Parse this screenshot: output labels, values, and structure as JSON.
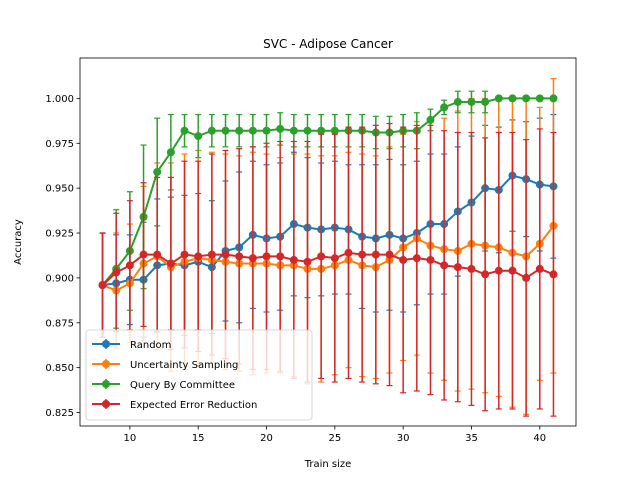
{
  "chart_data": {
    "type": "line",
    "title": "SVC - Adipose Cancer",
    "xlabel": "Train size",
    "ylabel": "Accuracy",
    "xlim": [
      6.35,
      42.65
    ],
    "ylim": [
      0.8175,
      1.0225
    ],
    "xticks": [
      10,
      15,
      20,
      25,
      30,
      35,
      40
    ],
    "yticks": [
      0.825,
      0.85,
      0.875,
      0.9,
      0.925,
      0.95,
      0.975,
      1.0
    ],
    "ytick_labels": [
      "0.825",
      "0.850",
      "0.875",
      "0.900",
      "0.925",
      "0.950",
      "0.975",
      "1.000"
    ],
    "grid": false,
    "legend_position": "lower-left",
    "x": [
      8,
      9,
      10,
      11,
      12,
      13,
      14,
      15,
      16,
      17,
      18,
      19,
      20,
      21,
      22,
      23,
      24,
      25,
      26,
      27,
      28,
      29,
      30,
      31,
      32,
      33,
      34,
      35,
      36,
      37,
      38,
      39,
      40,
      41
    ],
    "series": [
      {
        "name": "Random",
        "color": "#1f77b4",
        "values": [
          0.896,
          0.897,
          0.899,
          0.899,
          0.907,
          0.908,
          0.907,
          0.909,
          0.906,
          0.915,
          0.917,
          0.924,
          0.922,
          0.923,
          0.93,
          0.928,
          0.927,
          0.928,
          0.927,
          0.923,
          0.922,
          0.924,
          0.922,
          0.925,
          0.93,
          0.93,
          0.937,
          0.942,
          0.95,
          0.949,
          0.957,
          0.955,
          0.952,
          0.951
        ],
        "errors": [
          0.029,
          0.027,
          0.025,
          0.032,
          0.037,
          0.037,
          0.039,
          0.038,
          0.037,
          0.039,
          0.042,
          0.041,
          0.041,
          0.041,
          0.04,
          0.039,
          0.037,
          0.037,
          0.036,
          0.04,
          0.041,
          0.042,
          0.041,
          0.04,
          0.039,
          0.039,
          0.036,
          0.037,
          0.035,
          0.035,
          0.031,
          0.032,
          0.037,
          0.04
        ]
      },
      {
        "name": "Uncertainty Sampling",
        "color": "#ff7f0e",
        "values": [
          0.896,
          0.893,
          0.897,
          0.908,
          0.912,
          0.906,
          0.909,
          0.911,
          0.91,
          0.909,
          0.908,
          0.908,
          0.908,
          0.907,
          0.907,
          0.905,
          0.905,
          0.907,
          0.91,
          0.907,
          0.906,
          0.91,
          0.917,
          0.922,
          0.918,
          0.916,
          0.915,
          0.919,
          0.918,
          0.917,
          0.914,
          0.912,
          0.919,
          0.929
        ],
        "errors": [
          0.029,
          0.032,
          0.033,
          0.043,
          0.052,
          0.058,
          0.06,
          0.06,
          0.06,
          0.06,
          0.06,
          0.062,
          0.061,
          0.06,
          0.062,
          0.064,
          0.063,
          0.061,
          0.06,
          0.062,
          0.062,
          0.063,
          0.063,
          0.065,
          0.071,
          0.073,
          0.078,
          0.081,
          0.082,
          0.083,
          0.086,
          0.088,
          0.076,
          0.082
        ]
      },
      {
        "name": "Query By Committee",
        "color": "#2ca02c",
        "values": [
          0.896,
          0.905,
          0.915,
          0.934,
          0.959,
          0.97,
          0.982,
          0.979,
          0.982,
          0.982,
          0.982,
          0.982,
          0.982,
          0.983,
          0.982,
          0.982,
          0.982,
          0.982,
          0.982,
          0.982,
          0.981,
          0.981,
          0.982,
          0.982,
          0.988,
          0.995,
          0.998,
          0.998,
          0.998,
          1.0,
          1.0,
          1.0,
          1.0,
          1.0
        ],
        "errors": [
          0.029,
          0.033,
          0.033,
          0.04,
          0.03,
          0.021,
          0.009,
          0.012,
          0.009,
          0.009,
          0.009,
          0.009,
          0.009,
          0.009,
          0.009,
          0.009,
          0.009,
          0.009,
          0.009,
          0.009,
          0.009,
          0.009,
          0.009,
          0.01,
          0.006,
          0.004,
          0.006,
          0.006,
          0.006,
          0.0,
          0.0,
          0.0,
          0.0,
          0.0
        ]
      },
      {
        "name": "Expected Error Reduction",
        "color": "#d62728",
        "values": [
          0.896,
          0.903,
          0.907,
          0.913,
          0.913,
          0.908,
          0.913,
          0.912,
          0.913,
          0.913,
          0.912,
          0.911,
          0.912,
          0.912,
          0.91,
          0.909,
          0.912,
          0.911,
          0.914,
          0.913,
          0.913,
          0.913,
          0.91,
          0.911,
          0.91,
          0.907,
          0.906,
          0.905,
          0.902,
          0.904,
          0.904,
          0.9,
          0.905,
          0.902
        ],
        "errors": [
          0.029,
          0.033,
          0.036,
          0.04,
          0.043,
          0.048,
          0.052,
          0.053,
          0.056,
          0.058,
          0.06,
          0.062,
          0.063,
          0.064,
          0.066,
          0.067,
          0.068,
          0.069,
          0.07,
          0.071,
          0.072,
          0.073,
          0.074,
          0.074,
          0.075,
          0.075,
          0.075,
          0.076,
          0.076,
          0.077,
          0.077,
          0.077,
          0.078,
          0.079
        ]
      }
    ]
  }
}
